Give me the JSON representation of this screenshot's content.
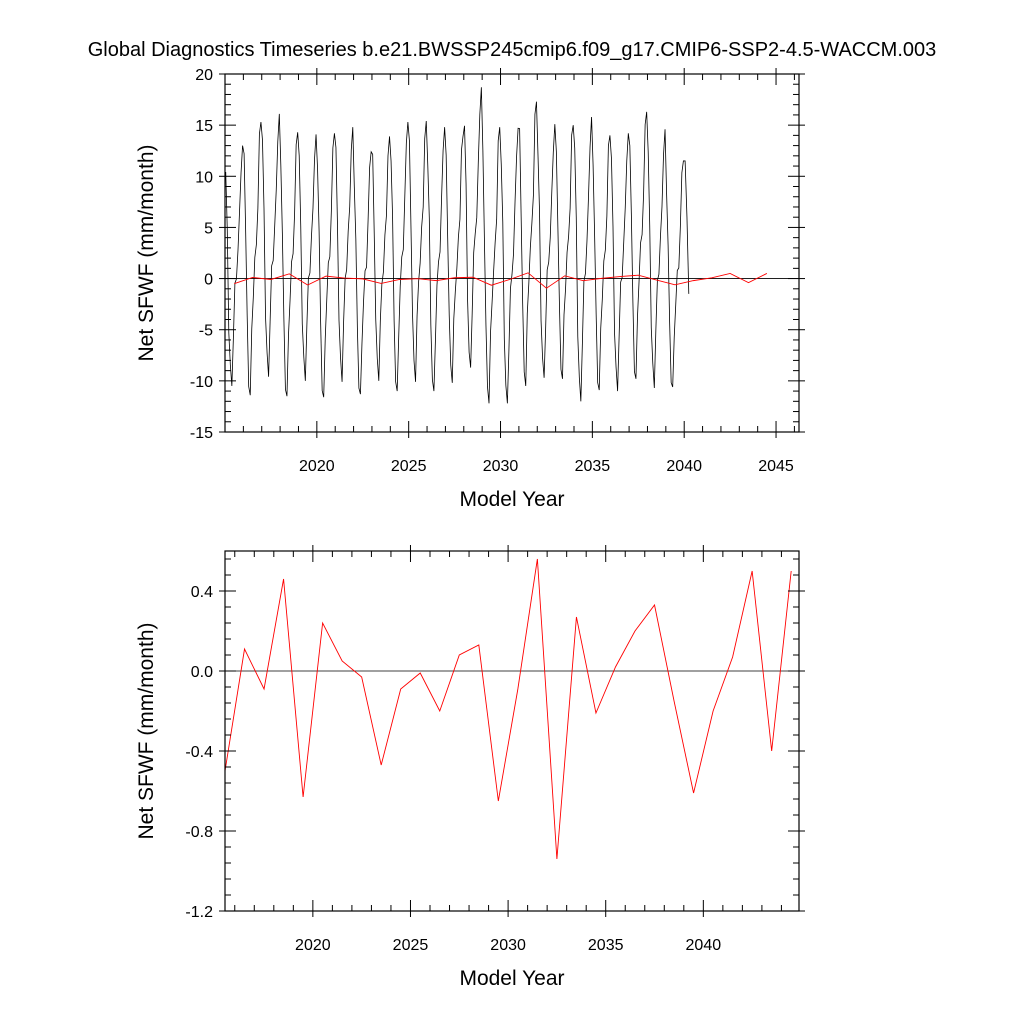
{
  "title": "Global Diagnostics Timeseries b.e21.BWSSP245cmip6.f09_g17.CMIP6-SSP2-4.5-WACCM.003",
  "chart_data": [
    {
      "type": "line",
      "xlabel": "Model Year",
      "ylabel": "Net SFWF (mm/month)",
      "xlim": [
        2015,
        2046.25
      ],
      "ylim": [
        -15,
        20
      ],
      "xticks": [
        2020,
        2025,
        2030,
        2035,
        2040,
        2045
      ],
      "xtick_labels": [
        "2020",
        "2025",
        "2030",
        "2035",
        "2040",
        "2045"
      ],
      "yticks": [
        -15,
        -10,
        -5,
        0,
        5,
        10,
        15,
        20
      ],
      "ytick_labels": [
        "-15",
        "-10",
        "-5",
        "0",
        "5",
        "10",
        "15",
        "20"
      ],
      "zero_line": true,
      "grid": false,
      "series": [
        {
          "color": "#000000",
          "note_monthly_pattern": "monthly values",
          "annual_max": [
            13.0,
            15.3,
            16.1,
            14.3,
            14.1,
            14.2,
            14.8,
            12.4,
            13.9,
            15.3,
            15.4,
            14.8,
            13.9,
            18.7,
            14.8,
            14.7,
            17.3,
            15.1,
            15.0,
            15.8,
            14.0,
            14.2,
            16.3,
            14.6,
            11.5
          ],
          "annual_min": [
            -10.5,
            -11.4,
            -9.6,
            -11.5,
            -10.0,
            -11.6,
            -10.1,
            -11.3,
            -10.0,
            -11.0,
            -10.1,
            -11.0,
            -10.2,
            -8.7,
            -12.2,
            -12.2,
            -10.5,
            -9.7,
            -9.8,
            -12.0,
            -10.9,
            -11.0,
            -9.8,
            -10.7,
            -10.6
          ]
        },
        {
          "color": "#ff0000",
          "x": [
            2015.5,
            2016.5,
            2017.5,
            2018.5,
            2019.5,
            2020.5,
            2021.5,
            2022.5,
            2023.5,
            2024.5,
            2025.5,
            2026.5,
            2027.5,
            2028.5,
            2029.5,
            2030.5,
            2031.5,
            2032.5,
            2033.5,
            2034.5,
            2035.5,
            2036.5,
            2037.5,
            2038.5,
            2039.5,
            2040.5,
            2041.5,
            2042.5,
            2043.5,
            2044.5
          ],
          "values": [
            -0.5,
            0.11,
            -0.09,
            0.46,
            -0.63,
            0.24,
            0.05,
            -0.03,
            -0.47,
            -0.09,
            -0.01,
            -0.2,
            0.08,
            0.13,
            -0.65,
            -0.09,
            0.56,
            -0.94,
            0.27,
            -0.21,
            0.02,
            0.2,
            0.33,
            -0.15,
            -0.61,
            -0.2,
            0.07,
            0.5,
            -0.4,
            0.5
          ]
        }
      ]
    },
    {
      "type": "line",
      "xlabel": "Model Year",
      "ylabel": "Net SFWF (mm/month)",
      "xlim": [
        2015.5,
        2044.9
      ],
      "ylim": [
        -1.2,
        0.6
      ],
      "xticks": [
        2020,
        2025,
        2030,
        2035,
        2040
      ],
      "xtick_labels": [
        "2020",
        "2025",
        "2030",
        "2035",
        "2040"
      ],
      "yticks": [
        -1.2,
        -0.8,
        -0.4,
        0.0,
        0.4
      ],
      "ytick_labels": [
        "-1.2",
        "-0.8",
        "-0.4",
        "0.0",
        "0.4"
      ],
      "zero_line": true,
      "grid": false,
      "series": [
        {
          "color": "#ff0000",
          "x": [
            2015.5,
            2016.5,
            2017.5,
            2018.5,
            2019.5,
            2020.5,
            2021.5,
            2022.5,
            2023.5,
            2024.5,
            2025.5,
            2026.5,
            2027.5,
            2028.5,
            2029.5,
            2030.5,
            2031.5,
            2032.5,
            2033.5,
            2034.5,
            2035.5,
            2036.5,
            2037.5,
            2038.5,
            2039.5,
            2040.5,
            2041.5,
            2042.5,
            2043.5,
            2044.5
          ],
          "values": [
            -0.5,
            0.11,
            -0.09,
            0.46,
            -0.63,
            0.24,
            0.05,
            -0.03,
            -0.47,
            -0.09,
            -0.01,
            -0.2,
            0.08,
            0.13,
            -0.65,
            -0.09,
            0.56,
            -0.94,
            0.27,
            -0.21,
            0.02,
            0.2,
            0.33,
            -0.15,
            -0.61,
            -0.2,
            0.07,
            0.5,
            -0.4,
            0.5
          ]
        }
      ]
    }
  ]
}
